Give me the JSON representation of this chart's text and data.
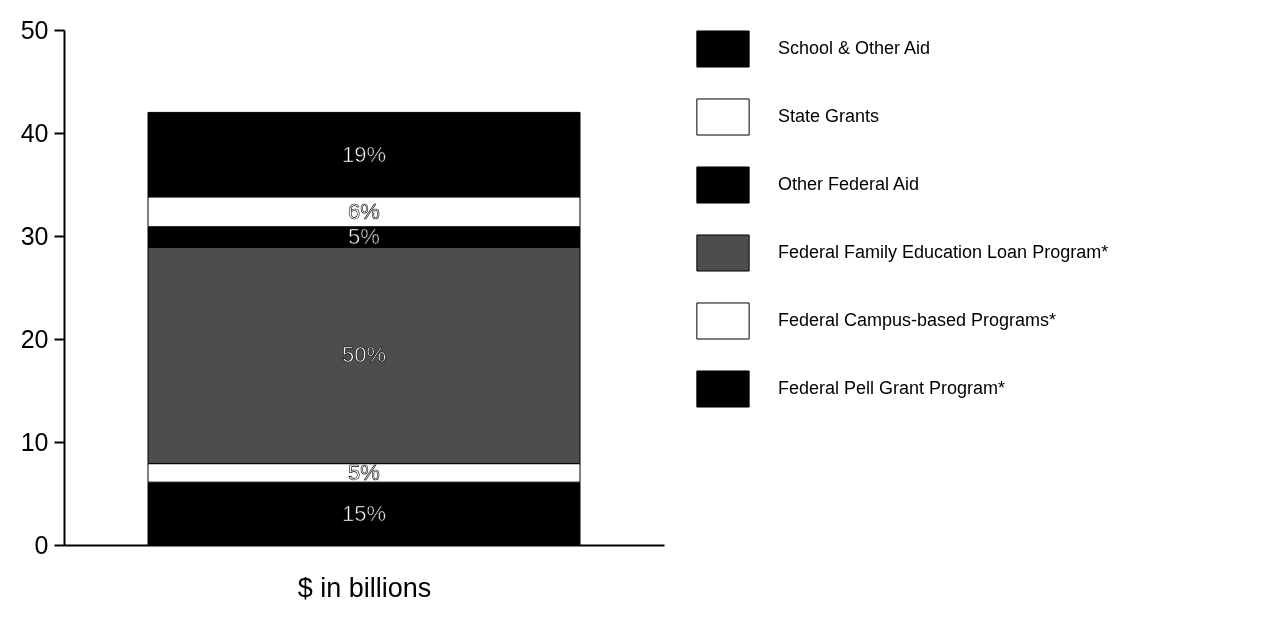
{
  "chart_data": {
    "type": "bar",
    "stacked": true,
    "categories": [
      null
    ],
    "xlabel": "$ in billions",
    "ylim": [
      0,
      50
    ],
    "yticks": [
      0,
      10,
      20,
      30,
      40,
      50
    ],
    "grid": false,
    "legend": "right",
    "series": [
      {
        "name": "Federal Pell Grant Program*",
        "color": "#000000",
        "values": [
          6.1
        ]
      },
      {
        "name": "Federal Campus-based Programs*",
        "color": "#ffffff",
        "values": [
          1.8
        ]
      },
      {
        "name": "Federal Family Education Loan Program*",
        "color": "#4d4d4d",
        "values": [
          21.0
        ]
      },
      {
        "name": "Other Federal Aid",
        "color": "#000000",
        "values": [
          2.0
        ]
      },
      {
        "name": "State Grants",
        "color": "#ffffff",
        "values": [
          2.9
        ]
      },
      {
        "name": "School & Other Aid",
        "color": "#000000",
        "values": [
          8.2
        ]
      }
    ],
    "annotations": [
      "15%",
      "5%",
      "50%",
      "5%",
      "6%",
      "19%"
    ]
  }
}
